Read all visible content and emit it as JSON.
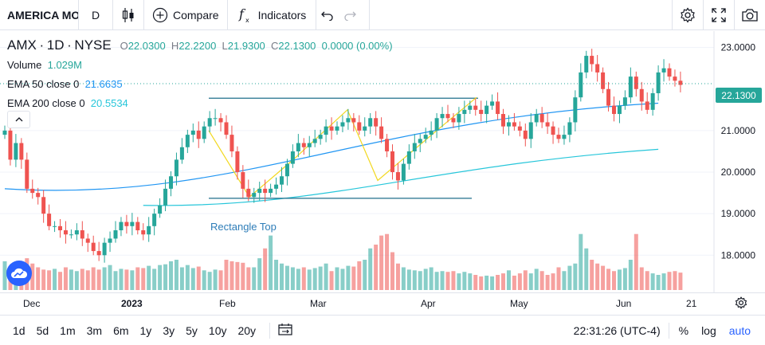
{
  "toolbar": {
    "symbol": "AMERICA MOVIL",
    "interval": "D",
    "compare_label": "Compare",
    "indicators_label": "Indicators"
  },
  "legend": {
    "symbol": "AMX",
    "interval": "1D",
    "exchange": "NYSE",
    "open_label": "O",
    "open": "22.0300",
    "high_label": "H",
    "high": "22.2200",
    "low_label": "L",
    "low": "21.9300",
    "close_label": "C",
    "close": "22.1300",
    "change": "0.0000 (0.00%)",
    "volume_label": "Volume",
    "volume": "1.029M",
    "ema50_label": "EMA 50 close 0",
    "ema50": "21.6635",
    "ema200_label": "EMA 200 close 0",
    "ema200": "20.5534"
  },
  "price_axis": {
    "ticks": [
      "23.0000",
      "22.1300",
      "21.0000",
      "20.0000",
      "19.0000",
      "18.0000"
    ],
    "last_price": "22.1300"
  },
  "annotation": "Rectangle Top",
  "time_axis": {
    "ticks": [
      {
        "label": "Dec",
        "bold": false
      },
      {
        "label": "2023",
        "bold": true
      },
      {
        "label": "Feb",
        "bold": false
      },
      {
        "label": "Mar",
        "bold": false
      },
      {
        "label": "Apr",
        "bold": false
      },
      {
        "label": "May",
        "bold": false
      },
      {
        "label": "Jun",
        "bold": false
      },
      {
        "label": "21",
        "bold": false
      }
    ]
  },
  "bottom_bar": {
    "ranges": [
      "1d",
      "5d",
      "1m",
      "3m",
      "6m",
      "1y",
      "3y",
      "5y",
      "10y",
      "20y"
    ],
    "clock": "22:31:26 (UTC-4)",
    "percent": "%",
    "log": "log",
    "auto": "auto"
  },
  "colors": {
    "up": "#26a69a",
    "down": "#ef5350",
    "ema50": "#2196f3",
    "ema200": "#26c6da",
    "pattern": "#f2d81f",
    "rect_lines": "#1f6f8b",
    "accent": "#2962ff"
  },
  "chart_data": {
    "type": "candlestick",
    "y_range": [
      17.2,
      23.3
    ],
    "pattern_label": "Rectangle Top",
    "rectangle_top_levels": [
      21.78,
      19.37
    ],
    "closes": [
      21.0,
      20.3,
      20.7,
      20.3,
      19.6,
      19.5,
      19.4,
      19.0,
      18.7,
      18.7,
      18.6,
      18.5,
      18.5,
      18.6,
      18.4,
      18.3,
      18.1,
      18.0,
      18.3,
      18.4,
      18.6,
      18.8,
      18.7,
      18.8,
      18.6,
      18.5,
      18.7,
      19.0,
      19.2,
      19.6,
      19.9,
      20.3,
      20.6,
      20.9,
      21.0,
      20.8,
      21.1,
      21.3,
      21.3,
      21.2,
      20.9,
      20.5,
      20.0,
      19.6,
      19.4,
      19.5,
      19.6,
      19.5,
      19.6,
      19.7,
      19.9,
      20.2,
      20.5,
      20.7,
      20.6,
      20.7,
      20.8,
      20.9,
      21.1,
      21.0,
      21.1,
      21.2,
      21.3,
      21.2,
      21.0,
      21.1,
      21.3,
      21.1,
      20.8,
      20.5,
      20.0,
      19.8,
      20.2,
      20.5,
      20.7,
      20.8,
      20.9,
      21.0,
      21.3,
      21.4,
      21.3,
      21.2,
      21.4,
      21.5,
      21.6,
      21.5,
      21.4,
      21.6,
      21.7,
      21.4,
      21.1,
      21.2,
      21.1,
      21.0,
      20.8,
      21.2,
      21.4,
      21.2,
      21.1,
      20.9,
      20.8,
      20.9,
      21.2,
      21.8,
      22.4,
      22.8,
      22.6,
      22.4,
      22.0,
      21.6,
      21.4,
      21.6,
      21.8,
      22.3,
      22.0,
      21.7,
      21.5,
      21.9,
      22.4,
      22.5,
      22.3,
      22.2,
      22.1
    ],
    "volumes": [
      0.38,
      0.3,
      0.28,
      0.22,
      0.42,
      0.35,
      0.3,
      0.27,
      0.26,
      0.28,
      0.24,
      0.3,
      0.27,
      0.25,
      0.28,
      0.26,
      0.3,
      0.27,
      0.3,
      0.33,
      0.25,
      0.28,
      0.27,
      0.26,
      0.3,
      0.29,
      0.32,
      0.28,
      0.33,
      0.34,
      0.38,
      0.4,
      0.3,
      0.33,
      0.29,
      0.31,
      0.26,
      0.24,
      0.27,
      0.26,
      0.4,
      0.38,
      0.37,
      0.36,
      0.3,
      0.3,
      0.42,
      0.55,
      0.72,
      0.4,
      0.35,
      0.32,
      0.3,
      0.28,
      0.3,
      0.27,
      0.29,
      0.31,
      0.35,
      0.25,
      0.3,
      0.28,
      0.32,
      0.31,
      0.38,
      0.4,
      0.55,
      0.6,
      0.72,
      0.74,
      0.5,
      0.35,
      0.3,
      0.27,
      0.26,
      0.25,
      0.28,
      0.3,
      0.24,
      0.25,
      0.24,
      0.25,
      0.22,
      0.24,
      0.22,
      0.2,
      0.18,
      0.19,
      0.18,
      0.2,
      0.22,
      0.26,
      0.19,
      0.22,
      0.26,
      0.22,
      0.28,
      0.25,
      0.2,
      0.22,
      0.3,
      0.25,
      0.32,
      0.35,
      0.74,
      0.55,
      0.4,
      0.35,
      0.32,
      0.28,
      0.25,
      0.27,
      0.29,
      0.4,
      0.74,
      0.3,
      0.25,
      0.22,
      0.2,
      0.22,
      0.24,
      0.25,
      0.23
    ],
    "ema50_endpoints": [
      [
        0,
        19.6
      ],
      [
        118,
        21.66
      ]
    ],
    "ema200_endpoints": [
      [
        25,
        19.2
      ],
      [
        118,
        20.55
      ]
    ]
  }
}
